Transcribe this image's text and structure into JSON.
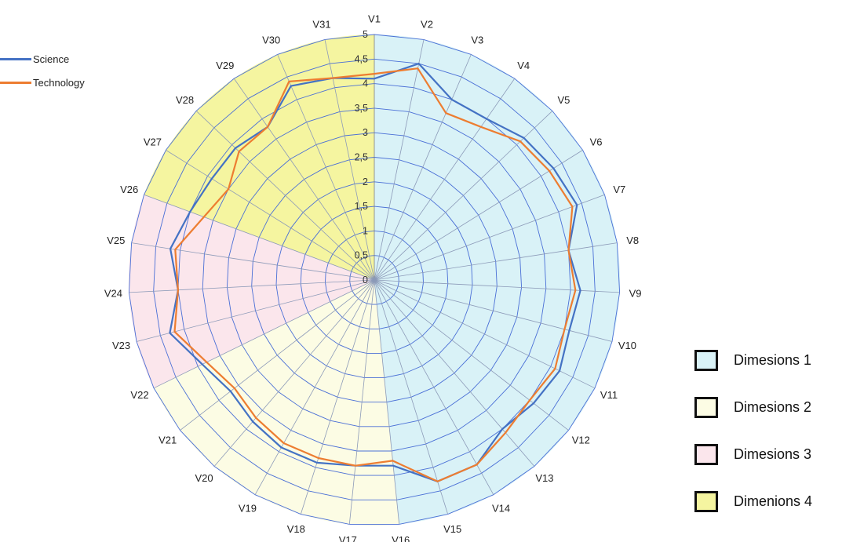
{
  "chart_data": {
    "type": "radar",
    "title": "",
    "categories": [
      "V1",
      "V2",
      "V3",
      "V4",
      "V5",
      "V6",
      "V7",
      "V8",
      "V9",
      "V10",
      "V11",
      "V12",
      "V13",
      "V14",
      "V15",
      "V16",
      "V17",
      "V18",
      "V19",
      "V20",
      "V21",
      "V22",
      "V23",
      "V24",
      "V25",
      "V26",
      "V27",
      "V28",
      "V29",
      "V30",
      "V31"
    ],
    "rlim": [
      0,
      5
    ],
    "ticks": [
      0,
      0.5,
      1,
      1.5,
      2,
      2.5,
      3,
      3.5,
      4,
      4.5,
      5
    ],
    "tick_labels": [
      "0",
      "0,5",
      "1",
      "1,5",
      "2",
      "2,5",
      "3",
      "3,5",
      "4",
      "4,5",
      "5"
    ],
    "grid": true,
    "legend_position": "top-left",
    "series": [
      {
        "name": "Science",
        "color": "#4472c4",
        "values": [
          4.1,
          4.5,
          4.0,
          4.0,
          4.2,
          4.3,
          4.4,
          4.0,
          4.2,
          4.1,
          4.2,
          4.1,
          4.0,
          4.3,
          4.3,
          3.8,
          3.8,
          3.9,
          3.9,
          3.8,
          3.7,
          3.9,
          4.3,
          4.0,
          4.2,
          4.0,
          3.9,
          3.9,
          3.8,
          4.3,
          4.2
        ]
      },
      {
        "name": "Technology",
        "color": "#ed7d31",
        "values": [
          4.2,
          4.4,
          3.7,
          3.8,
          4.1,
          4.2,
          4.3,
          4.0,
          4.1,
          4.0,
          4.1,
          4.0,
          4.1,
          4.3,
          4.3,
          3.7,
          3.8,
          3.8,
          3.8,
          3.7,
          3.6,
          3.8,
          4.2,
          4.0,
          4.1,
          3.7,
          3.5,
          3.8,
          3.8,
          4.4,
          4.2
        ]
      }
    ],
    "dimension_sectors": [
      {
        "label": "Dimesions 1",
        "color": "#d9f2f7",
        "from": "V1",
        "to": "V16"
      },
      {
        "label": "Dimesions 2",
        "color": "#fcfce4",
        "from": "V16",
        "to": "V22"
      },
      {
        "label": "Dimesions 3",
        "color": "#fbe6ec",
        "from": "V22",
        "to": "V26"
      },
      {
        "label": "Dimenions 4",
        "color": "#f5f5a0",
        "from": "V26",
        "to": "V1"
      }
    ]
  }
}
